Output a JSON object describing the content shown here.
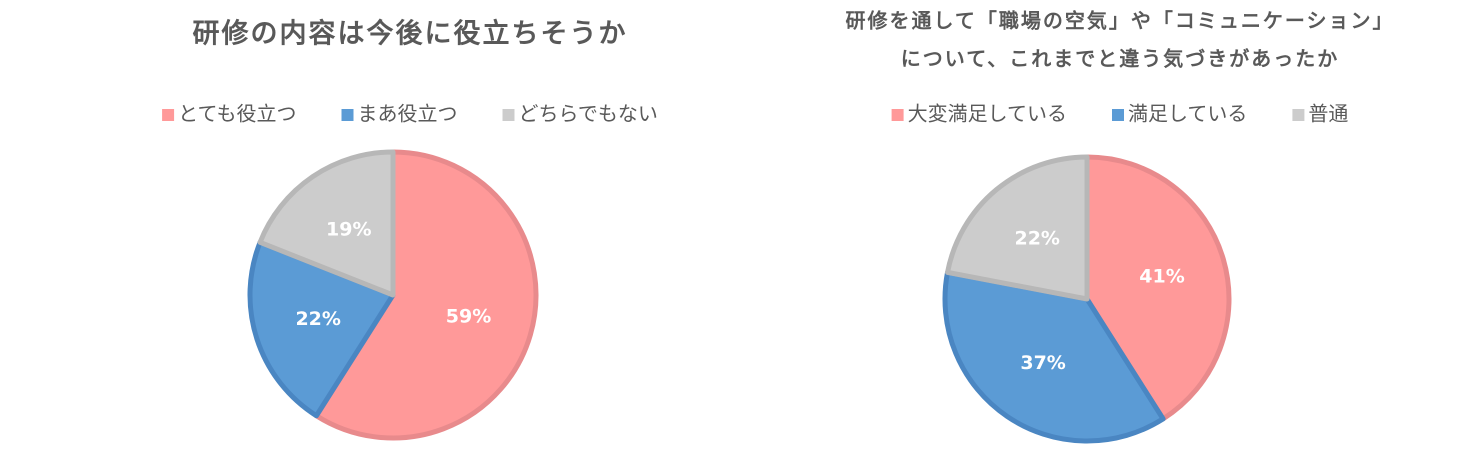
{
  "chart_data": [
    {
      "type": "pie",
      "title": "研修の内容は今後に役立ちそうか",
      "categories": [
        "とても役立つ",
        "まあ役立つ",
        "どちらでもない"
      ],
      "values": [
        59,
        22,
        19
      ],
      "value_labels": [
        "59%",
        "22%",
        "19%"
      ],
      "colors": [
        "#ff9999",
        "#5b9bd5",
        "#cccccc"
      ],
      "edge_colors": [
        "#e88a8c",
        "#4a86c2",
        "#b7b7b7"
      ],
      "legend": "top"
    },
    {
      "type": "pie",
      "title": [
        "研修を通して「職場の空気」や「コミュニケーション」",
        "について、これまでと違う気づきがあったか"
      ],
      "categories": [
        "大変満足している",
        "満足している",
        "普通"
      ],
      "values": [
        41,
        37,
        22
      ],
      "value_labels": [
        "41%",
        "37%",
        "22%"
      ],
      "colors": [
        "#ff9999",
        "#5b9bd5",
        "#cccccc"
      ],
      "edge_colors": [
        "#e88a8c",
        "#4a86c2",
        "#b7b7b7"
      ],
      "legend": "top"
    }
  ]
}
